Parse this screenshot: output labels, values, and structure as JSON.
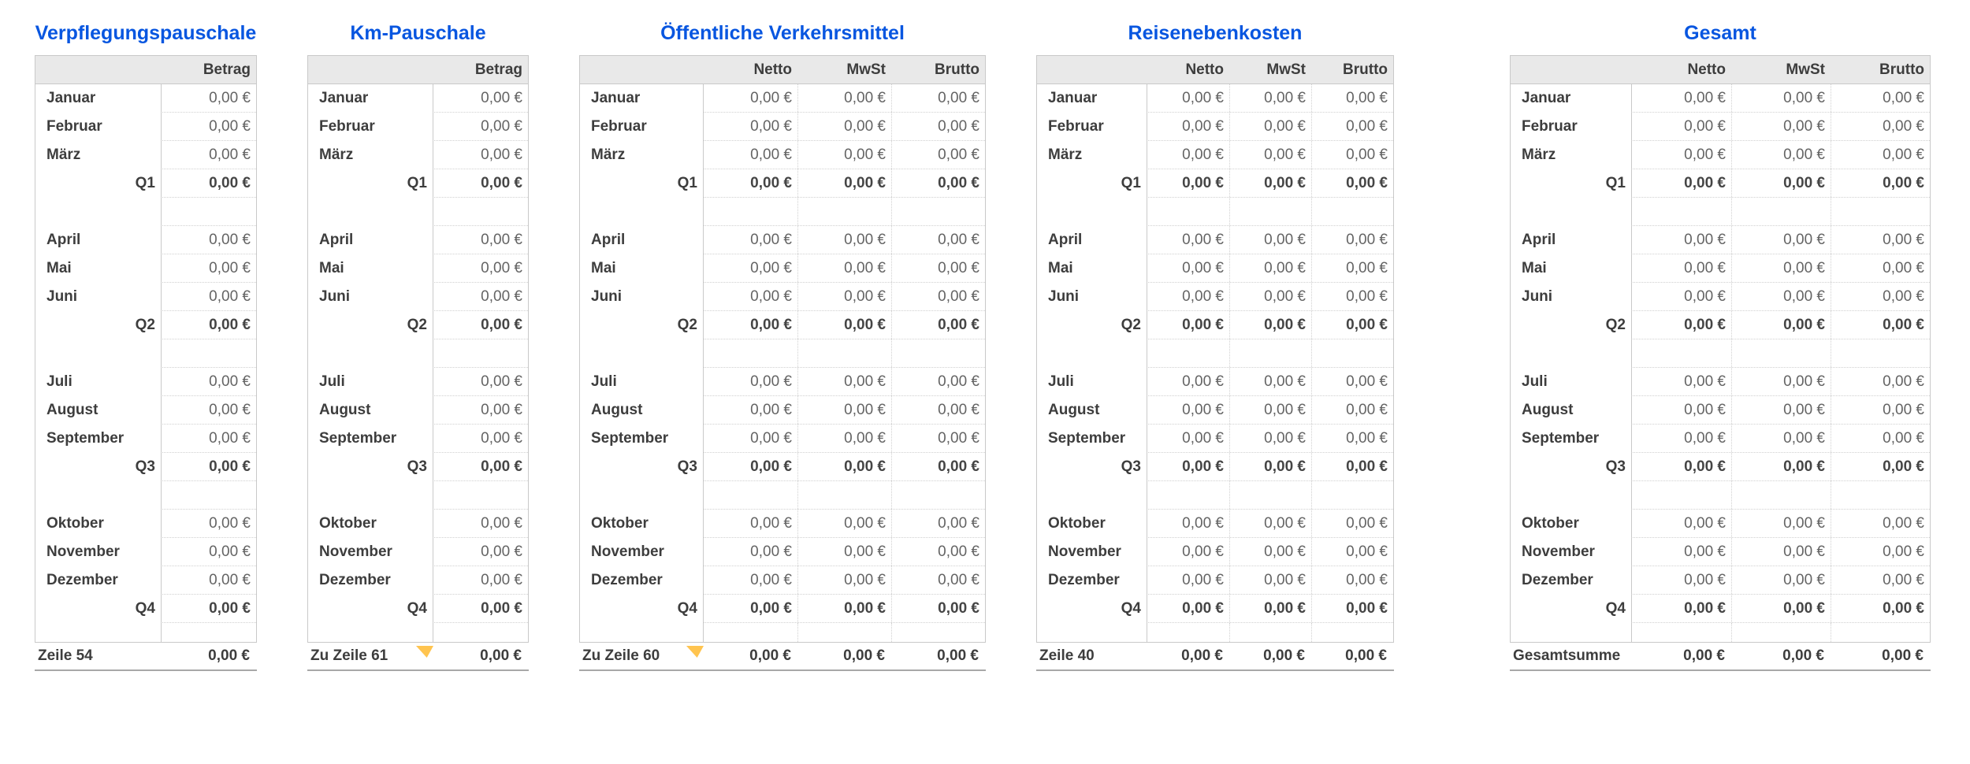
{
  "colors": {
    "title_blue": "#0856E0",
    "header_bg": "#E9E9E9",
    "grid_line": "#C9C9C9",
    "dotted_line": "#D0D0D0",
    "label_text": "#3D3D3D",
    "value_text": "#646464",
    "footer_rule": "#A8A8A8",
    "note_marker_yellow": "#FFC44F",
    "page_background": "#FFFFFF"
  },
  "tables": [
    {
      "title": "Verpflegungspauschale",
      "columns": [
        "Betrag"
      ],
      "rows": [
        {
          "label": "Januar",
          "style": "month",
          "values": [
            "0,00 €"
          ]
        },
        {
          "label": "Februar",
          "style": "month",
          "values": [
            "0,00 €"
          ]
        },
        {
          "label": "März",
          "style": "month",
          "values": [
            "0,00 €"
          ]
        },
        {
          "label": "Q1",
          "style": "quarter",
          "values": [
            "0,00 €"
          ]
        },
        {
          "label": "",
          "style": "spacer",
          "values": []
        },
        {
          "label": "April",
          "style": "month",
          "values": [
            "0,00 €"
          ]
        },
        {
          "label": "Mai",
          "style": "month",
          "values": [
            "0,00 €"
          ]
        },
        {
          "label": "Juni",
          "style": "month",
          "values": [
            "0,00 €"
          ]
        },
        {
          "label": "Q2",
          "style": "quarter",
          "values": [
            "0,00 €"
          ]
        },
        {
          "label": "",
          "style": "spacer",
          "values": []
        },
        {
          "label": "Juli",
          "style": "month",
          "values": [
            "0,00 €"
          ]
        },
        {
          "label": "August",
          "style": "month",
          "values": [
            "0,00 €"
          ]
        },
        {
          "label": "September",
          "style": "month",
          "values": [
            "0,00 €"
          ]
        },
        {
          "label": "Q3",
          "style": "quarter",
          "values": [
            "0,00 €"
          ]
        },
        {
          "label": "",
          "style": "spacer",
          "values": []
        },
        {
          "label": "Oktober",
          "style": "month",
          "values": [
            "0,00 €"
          ]
        },
        {
          "label": "November",
          "style": "month",
          "values": [
            "0,00 €"
          ]
        },
        {
          "label": "Dezember",
          "style": "month",
          "values": [
            "0,00 €"
          ]
        },
        {
          "label": "Q4",
          "style": "quarter",
          "values": [
            "0,00 €"
          ]
        }
      ],
      "footer": {
        "label": "Zeile 54",
        "values": [
          "0,00 €"
        ],
        "has_note_marker": false
      }
    },
    {
      "title": "Km-Pauschale",
      "columns": [
        "Betrag"
      ],
      "rows": [
        {
          "label": "Januar",
          "style": "month",
          "values": [
            "0,00 €"
          ]
        },
        {
          "label": "Februar",
          "style": "month",
          "values": [
            "0,00 €"
          ]
        },
        {
          "label": "März",
          "style": "month",
          "values": [
            "0,00 €"
          ]
        },
        {
          "label": "Q1",
          "style": "quarter",
          "values": [
            "0,00 €"
          ]
        },
        {
          "label": "",
          "style": "spacer",
          "values": []
        },
        {
          "label": "April",
          "style": "month",
          "values": [
            "0,00 €"
          ]
        },
        {
          "label": "Mai",
          "style": "month",
          "values": [
            "0,00 €"
          ]
        },
        {
          "label": "Juni",
          "style": "month",
          "values": [
            "0,00 €"
          ]
        },
        {
          "label": "Q2",
          "style": "quarter",
          "values": [
            "0,00 €"
          ]
        },
        {
          "label": "",
          "style": "spacer",
          "values": []
        },
        {
          "label": "Juli",
          "style": "month",
          "values": [
            "0,00 €"
          ]
        },
        {
          "label": "August",
          "style": "month",
          "values": [
            "0,00 €"
          ]
        },
        {
          "label": "September",
          "style": "month",
          "values": [
            "0,00 €"
          ]
        },
        {
          "label": "Q3",
          "style": "quarter",
          "values": [
            "0,00 €"
          ]
        },
        {
          "label": "",
          "style": "spacer",
          "values": []
        },
        {
          "label": "Oktober",
          "style": "month",
          "values": [
            "0,00 €"
          ]
        },
        {
          "label": "November",
          "style": "month",
          "values": [
            "0,00 €"
          ]
        },
        {
          "label": "Dezember",
          "style": "month",
          "values": [
            "0,00 €"
          ]
        },
        {
          "label": "Q4",
          "style": "quarter",
          "values": [
            "0,00 €"
          ]
        }
      ],
      "footer": {
        "label": "Zu Zeile 61",
        "values": [
          "0,00 €"
        ],
        "has_note_marker": true
      }
    },
    {
      "title": "Öffentliche Verkehrsmittel",
      "columns": [
        "Netto",
        "MwSt",
        "Brutto"
      ],
      "rows": [
        {
          "label": "Januar",
          "style": "month",
          "values": [
            "0,00 €",
            "0,00 €",
            "0,00 €"
          ]
        },
        {
          "label": "Februar",
          "style": "month",
          "values": [
            "0,00 €",
            "0,00 €",
            "0,00 €"
          ]
        },
        {
          "label": "März",
          "style": "month",
          "values": [
            "0,00 €",
            "0,00 €",
            "0,00 €"
          ]
        },
        {
          "label": "Q1",
          "style": "quarter",
          "values": [
            "0,00 €",
            "0,00 €",
            "0,00 €"
          ]
        },
        {
          "label": "",
          "style": "spacer",
          "values": []
        },
        {
          "label": "April",
          "style": "month",
          "values": [
            "0,00 €",
            "0,00 €",
            "0,00 €"
          ]
        },
        {
          "label": "Mai",
          "style": "month",
          "values": [
            "0,00 €",
            "0,00 €",
            "0,00 €"
          ]
        },
        {
          "label": "Juni",
          "style": "month",
          "values": [
            "0,00 €",
            "0,00 €",
            "0,00 €"
          ]
        },
        {
          "label": "Q2",
          "style": "quarter",
          "values": [
            "0,00 €",
            "0,00 €",
            "0,00 €"
          ]
        },
        {
          "label": "",
          "style": "spacer",
          "values": []
        },
        {
          "label": "Juli",
          "style": "month",
          "values": [
            "0,00 €",
            "0,00 €",
            "0,00 €"
          ]
        },
        {
          "label": "August",
          "style": "month",
          "values": [
            "0,00 €",
            "0,00 €",
            "0,00 €"
          ]
        },
        {
          "label": "September",
          "style": "month",
          "values": [
            "0,00 €",
            "0,00 €",
            "0,00 €"
          ]
        },
        {
          "label": "Q3",
          "style": "quarter",
          "values": [
            "0,00 €",
            "0,00 €",
            "0,00 €"
          ]
        },
        {
          "label": "",
          "style": "spacer",
          "values": []
        },
        {
          "label": "Oktober",
          "style": "month",
          "values": [
            "0,00 €",
            "0,00 €",
            "0,00 €"
          ]
        },
        {
          "label": "November",
          "style": "month",
          "values": [
            "0,00 €",
            "0,00 €",
            "0,00 €"
          ]
        },
        {
          "label": "Dezember",
          "style": "month",
          "values": [
            "0,00 €",
            "0,00 €",
            "0,00 €"
          ]
        },
        {
          "label": "Q4",
          "style": "quarter",
          "values": [
            "0,00 €",
            "0,00 €",
            "0,00 €"
          ]
        }
      ],
      "footer": {
        "label": "Zu Zeile 60",
        "values": [
          "0,00 €",
          "0,00 €",
          "0,00 €"
        ],
        "has_note_marker": true
      }
    },
    {
      "title": "Reisenebenkosten",
      "columns": [
        "Netto",
        "MwSt",
        "Brutto"
      ],
      "rows": [
        {
          "label": "Januar",
          "style": "month",
          "values": [
            "0,00 €",
            "0,00 €",
            "0,00 €"
          ]
        },
        {
          "label": "Februar",
          "style": "month",
          "values": [
            "0,00 €",
            "0,00 €",
            "0,00 €"
          ]
        },
        {
          "label": "März",
          "style": "month",
          "values": [
            "0,00 €",
            "0,00 €",
            "0,00 €"
          ]
        },
        {
          "label": "Q1",
          "style": "quarter",
          "values": [
            "0,00 €",
            "0,00 €",
            "0,00 €"
          ]
        },
        {
          "label": "",
          "style": "spacer",
          "values": []
        },
        {
          "label": "April",
          "style": "month",
          "values": [
            "0,00 €",
            "0,00 €",
            "0,00 €"
          ]
        },
        {
          "label": "Mai",
          "style": "month",
          "values": [
            "0,00 €",
            "0,00 €",
            "0,00 €"
          ]
        },
        {
          "label": "Juni",
          "style": "month",
          "values": [
            "0,00 €",
            "0,00 €",
            "0,00 €"
          ]
        },
        {
          "label": "Q2",
          "style": "quarter",
          "values": [
            "0,00 €",
            "0,00 €",
            "0,00 €"
          ]
        },
        {
          "label": "",
          "style": "spacer",
          "values": []
        },
        {
          "label": "Juli",
          "style": "month",
          "values": [
            "0,00 €",
            "0,00 €",
            "0,00 €"
          ]
        },
        {
          "label": "August",
          "style": "month",
          "values": [
            "0,00 €",
            "0,00 €",
            "0,00 €"
          ]
        },
        {
          "label": "September",
          "style": "month",
          "values": [
            "0,00 €",
            "0,00 €",
            "0,00 €"
          ]
        },
        {
          "label": "Q3",
          "style": "quarter",
          "values": [
            "0,00 €",
            "0,00 €",
            "0,00 €"
          ]
        },
        {
          "label": "",
          "style": "spacer",
          "values": []
        },
        {
          "label": "Oktober",
          "style": "month",
          "values": [
            "0,00 €",
            "0,00 €",
            "0,00 €"
          ]
        },
        {
          "label": "November",
          "style": "month",
          "values": [
            "0,00 €",
            "0,00 €",
            "0,00 €"
          ]
        },
        {
          "label": "Dezember",
          "style": "month",
          "values": [
            "0,00 €",
            "0,00 €",
            "0,00 €"
          ]
        },
        {
          "label": "Q4",
          "style": "quarter",
          "values": [
            "0,00 €",
            "0,00 €",
            "0,00 €"
          ]
        }
      ],
      "footer": {
        "label": "Zeile 40",
        "values": [
          "0,00 €",
          "0,00 €",
          "0,00 €"
        ],
        "has_note_marker": false
      }
    },
    {
      "title": "Gesamt",
      "columns": [
        "Netto",
        "MwSt",
        "Brutto"
      ],
      "rows": [
        {
          "label": "Januar",
          "style": "month",
          "values": [
            "0,00 €",
            "0,00 €",
            "0,00 €"
          ]
        },
        {
          "label": "Februar",
          "style": "month",
          "values": [
            "0,00 €",
            "0,00 €",
            "0,00 €"
          ]
        },
        {
          "label": "März",
          "style": "month",
          "values": [
            "0,00 €",
            "0,00 €",
            "0,00 €"
          ]
        },
        {
          "label": "Q1",
          "style": "quarter",
          "values": [
            "0,00 €",
            "0,00 €",
            "0,00 €"
          ]
        },
        {
          "label": "",
          "style": "spacer",
          "values": []
        },
        {
          "label": "April",
          "style": "month",
          "values": [
            "0,00 €",
            "0,00 €",
            "0,00 €"
          ]
        },
        {
          "label": "Mai",
          "style": "month",
          "values": [
            "0,00 €",
            "0,00 €",
            "0,00 €"
          ]
        },
        {
          "label": "Juni",
          "style": "month",
          "values": [
            "0,00 €",
            "0,00 €",
            "0,00 €"
          ]
        },
        {
          "label": "Q2",
          "style": "quarter",
          "values": [
            "0,00 €",
            "0,00 €",
            "0,00 €"
          ]
        },
        {
          "label": "",
          "style": "spacer",
          "values": []
        },
        {
          "label": "Juli",
          "style": "month",
          "values": [
            "0,00 €",
            "0,00 €",
            "0,00 €"
          ]
        },
        {
          "label": "August",
          "style": "month",
          "values": [
            "0,00 €",
            "0,00 €",
            "0,00 €"
          ]
        },
        {
          "label": "September",
          "style": "month",
          "values": [
            "0,00 €",
            "0,00 €",
            "0,00 €"
          ]
        },
        {
          "label": "Q3",
          "style": "quarter",
          "values": [
            "0,00 €",
            "0,00 €",
            "0,00 €"
          ]
        },
        {
          "label": "",
          "style": "spacer",
          "values": []
        },
        {
          "label": "Oktober",
          "style": "month",
          "values": [
            "0,00 €",
            "0,00 €",
            "0,00 €"
          ]
        },
        {
          "label": "November",
          "style": "month",
          "values": [
            "0,00 €",
            "0,00 €",
            "0,00 €"
          ]
        },
        {
          "label": "Dezember",
          "style": "month",
          "values": [
            "0,00 €",
            "0,00 €",
            "0,00 €"
          ]
        },
        {
          "label": "Q4",
          "style": "quarter",
          "values": [
            "0,00 €",
            "0,00 €",
            "0,00 €"
          ]
        }
      ],
      "footer": {
        "label": "Gesamtsumme",
        "values": [
          "0,00 €",
          "0,00 €",
          "0,00 €"
        ],
        "has_note_marker": false
      }
    }
  ]
}
